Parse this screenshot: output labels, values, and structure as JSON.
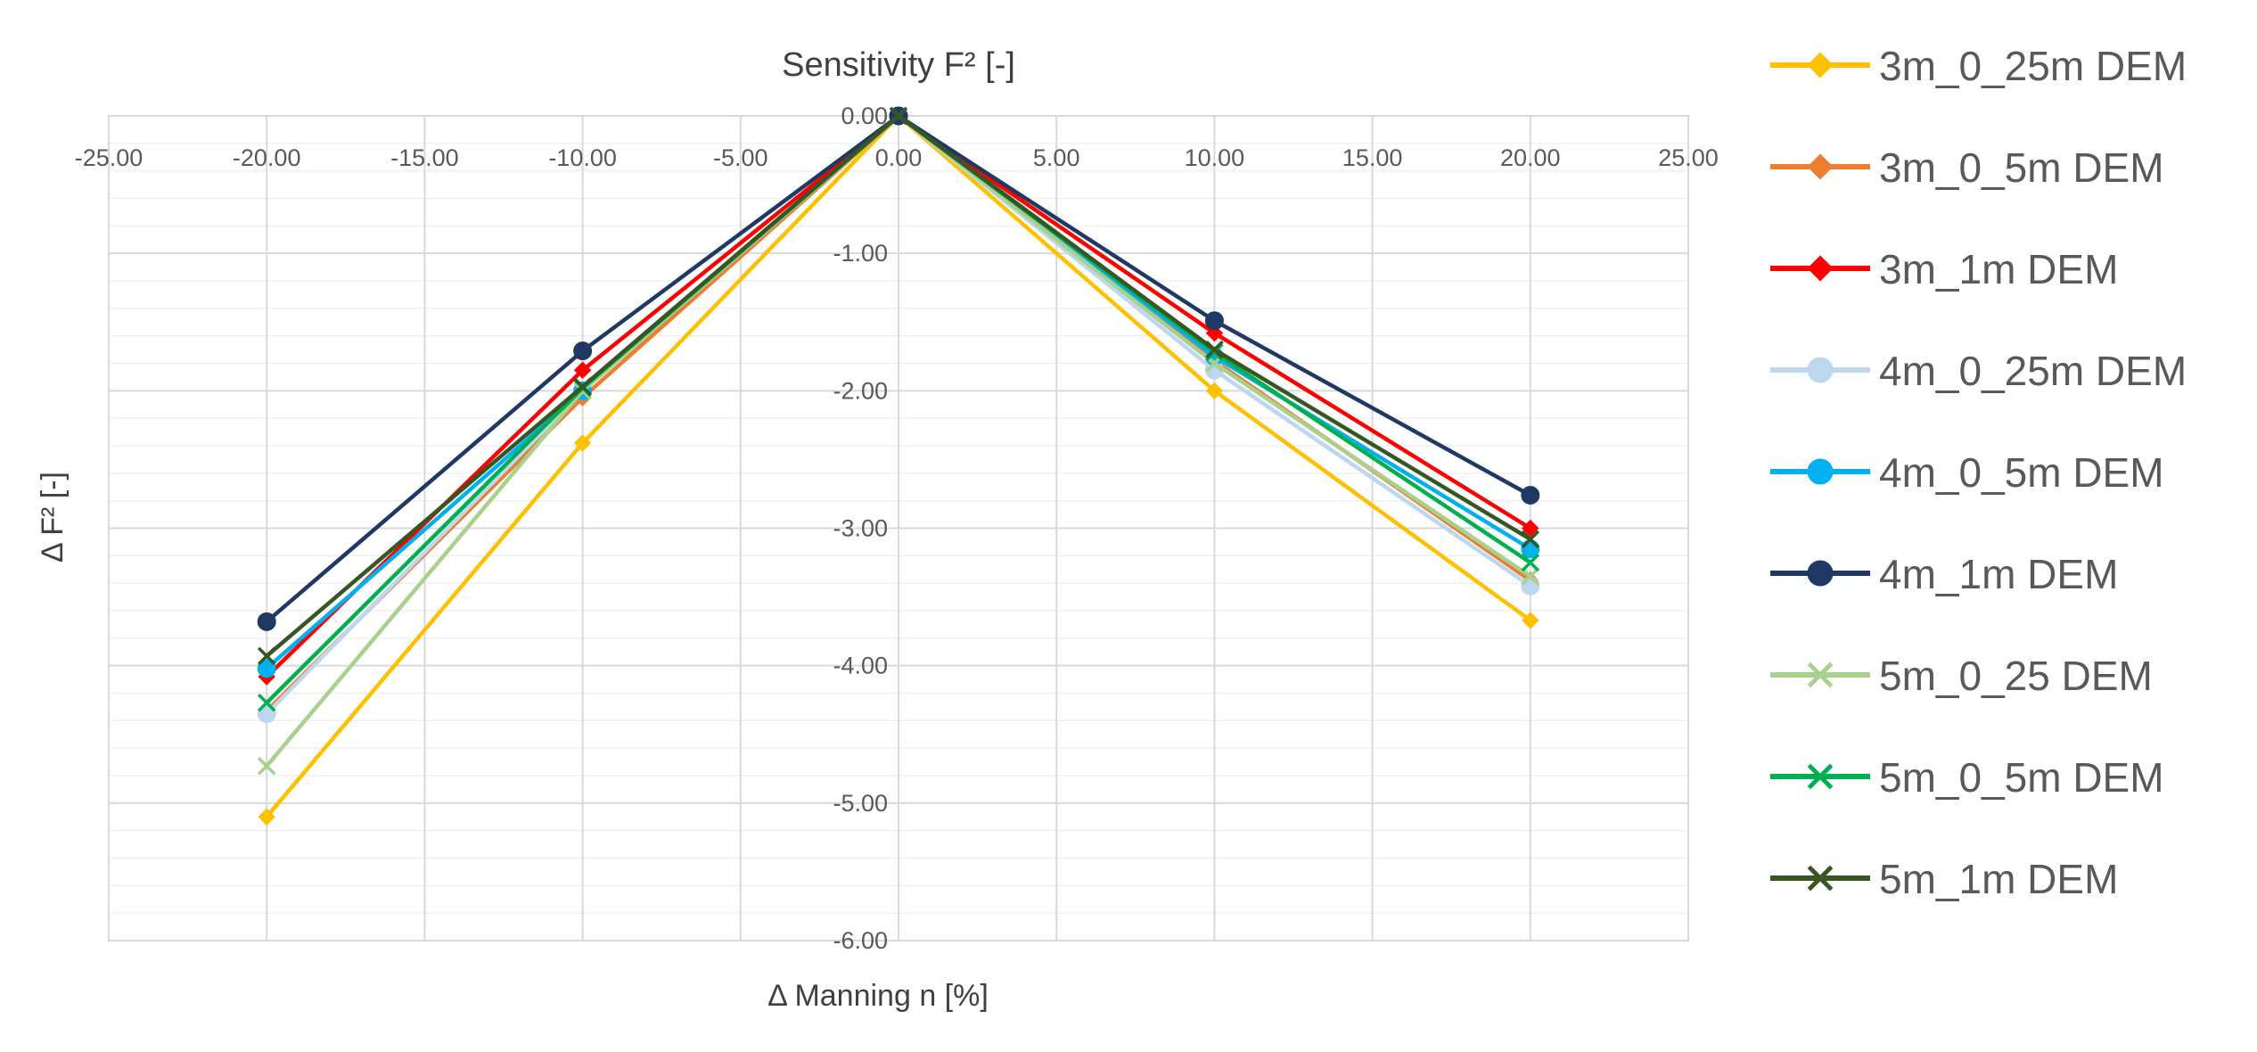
{
  "chart_data": {
    "type": "line",
    "title": "Sensitivity F² [-]",
    "xlabel": "Δ Manning n [%]",
    "ylabel": "Δ F² [-]",
    "xlim": [
      -25,
      25
    ],
    "ylim": [
      -6,
      0
    ],
    "x_ticks": [
      -25,
      -20,
      -15,
      -10,
      -5,
      0,
      5,
      10,
      15,
      20,
      25
    ],
    "y_ticks": [
      0,
      -1,
      -2,
      -3,
      -4,
      -5,
      -6
    ],
    "x_tick_labels": [
      "-25.00",
      "-20.00",
      "-15.00",
      "-10.00",
      "-5.00",
      "0.00",
      "5.00",
      "10.00",
      "15.00",
      "20.00",
      "25.00"
    ],
    "y_tick_labels": [
      "0.00",
      "-1.00",
      "-2.00",
      "-3.00",
      "-4.00",
      "-5.00",
      "-6.00"
    ],
    "grid": true,
    "legend_position": "right",
    "x": [
      -20,
      -10,
      0,
      10,
      20
    ],
    "series": [
      {
        "name": "3m_0_25m DEM",
        "color": "#FFC000",
        "marker": "diamond",
        "values": [
          -5.1,
          -2.38,
          0,
          -2.0,
          -3.67
        ]
      },
      {
        "name": "3m_0_5m DEM",
        "color": "#ED7D31",
        "marker": "diamond",
        "values": [
          -4.33,
          -2.05,
          0,
          -1.78,
          -3.38
        ]
      },
      {
        "name": "3m_1m DEM",
        "color": "#FF0000",
        "marker": "diamond",
        "values": [
          -4.08,
          -1.85,
          0,
          -1.58,
          -3.0
        ]
      },
      {
        "name": "4m_0_25m DEM",
        "color": "#BDD7EE",
        "marker": "circle",
        "values": [
          -4.35,
          -2.0,
          0,
          -1.85,
          -3.42
        ]
      },
      {
        "name": "4m_0_5m DEM",
        "color": "#00B0F0",
        "marker": "circle",
        "values": [
          -4.02,
          -2.0,
          0,
          -1.75,
          -3.15
        ]
      },
      {
        "name": "4m_1m DEM",
        "color": "#1F3864",
        "marker": "circle",
        "values": [
          -3.68,
          -1.71,
          0,
          -1.49,
          -2.76
        ]
      },
      {
        "name": "5m_0_25 DEM",
        "color": "#A9D18E",
        "marker": "x",
        "values": [
          -4.73,
          -2.0,
          0,
          -1.8,
          -3.35
        ]
      },
      {
        "name": "5m_0_5m DEM",
        "color": "#00B050",
        "marker": "x",
        "values": [
          -4.27,
          -1.98,
          0,
          -1.72,
          -3.25
        ]
      },
      {
        "name": "5m_1m DEM",
        "color": "#375623",
        "marker": "x",
        "values": [
          -3.93,
          -1.97,
          0,
          -1.7,
          -3.08
        ]
      }
    ]
  }
}
